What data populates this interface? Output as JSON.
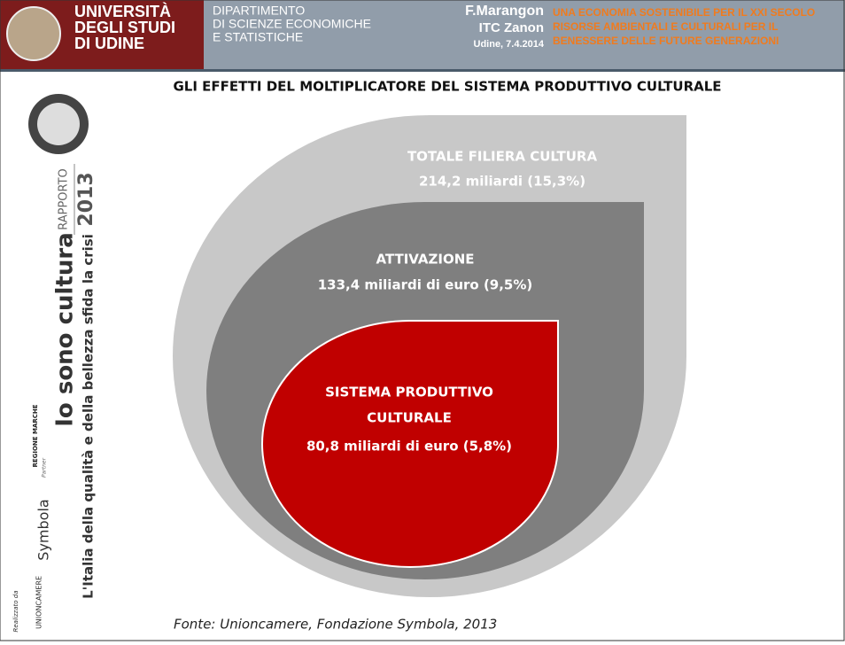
{
  "header": {
    "university": [
      "UNIVERSITÀ",
      "DEGLI STUDI",
      "DI UDINE"
    ],
    "department": [
      "DIPARTIMENTO",
      "DI SCIENZE ECONOMICHE",
      "E STATISTICHE"
    ],
    "author": "F.Marangon",
    "school": "ITC Zanon",
    "date": "Udine, 7.4.2014",
    "conference": [
      "UNA ECONOMIA SOSTENIBILE PER IL XXI SECOLO",
      "RISORSE AMBIENTALI E CULTURALI PER IL",
      "BENESSERE DELLE FUTURE GENERAZIONI"
    ]
  },
  "sidebar": {
    "report": "RAPPORTO",
    "year": "2013",
    "brand": "Io sono cultura",
    "subtitle": "L'Italia della qualità e della bellezza sfida la crisi",
    "partner_label": "Partner",
    "partner": "Symbola",
    "made_by_label": "Realizzato da",
    "made_by": "UNIONCAMERE",
    "region": "REGIONE MARCHE"
  },
  "title": "GLI EFFETTI DEL MOLTIPLICATORE DEL SISTEMA PRODUTTIVO CULTURALE",
  "layers": [
    {
      "label": [
        "TOTALE FILIERA CULTURA"
      ],
      "value": "214,2 miliardi (15,3%)"
    },
    {
      "label": [
        "ATTIVAZIONE"
      ],
      "value": "133,4 miliardi di euro (9,5%)"
    },
    {
      "label": [
        "SISTEMA PRODUTTIVO",
        "CULTURALE"
      ],
      "value": "80,8 miliardi di euro (5,8%)"
    }
  ],
  "source": "Fonte: Unioncamere, Fondazione Symbola, 2013"
}
